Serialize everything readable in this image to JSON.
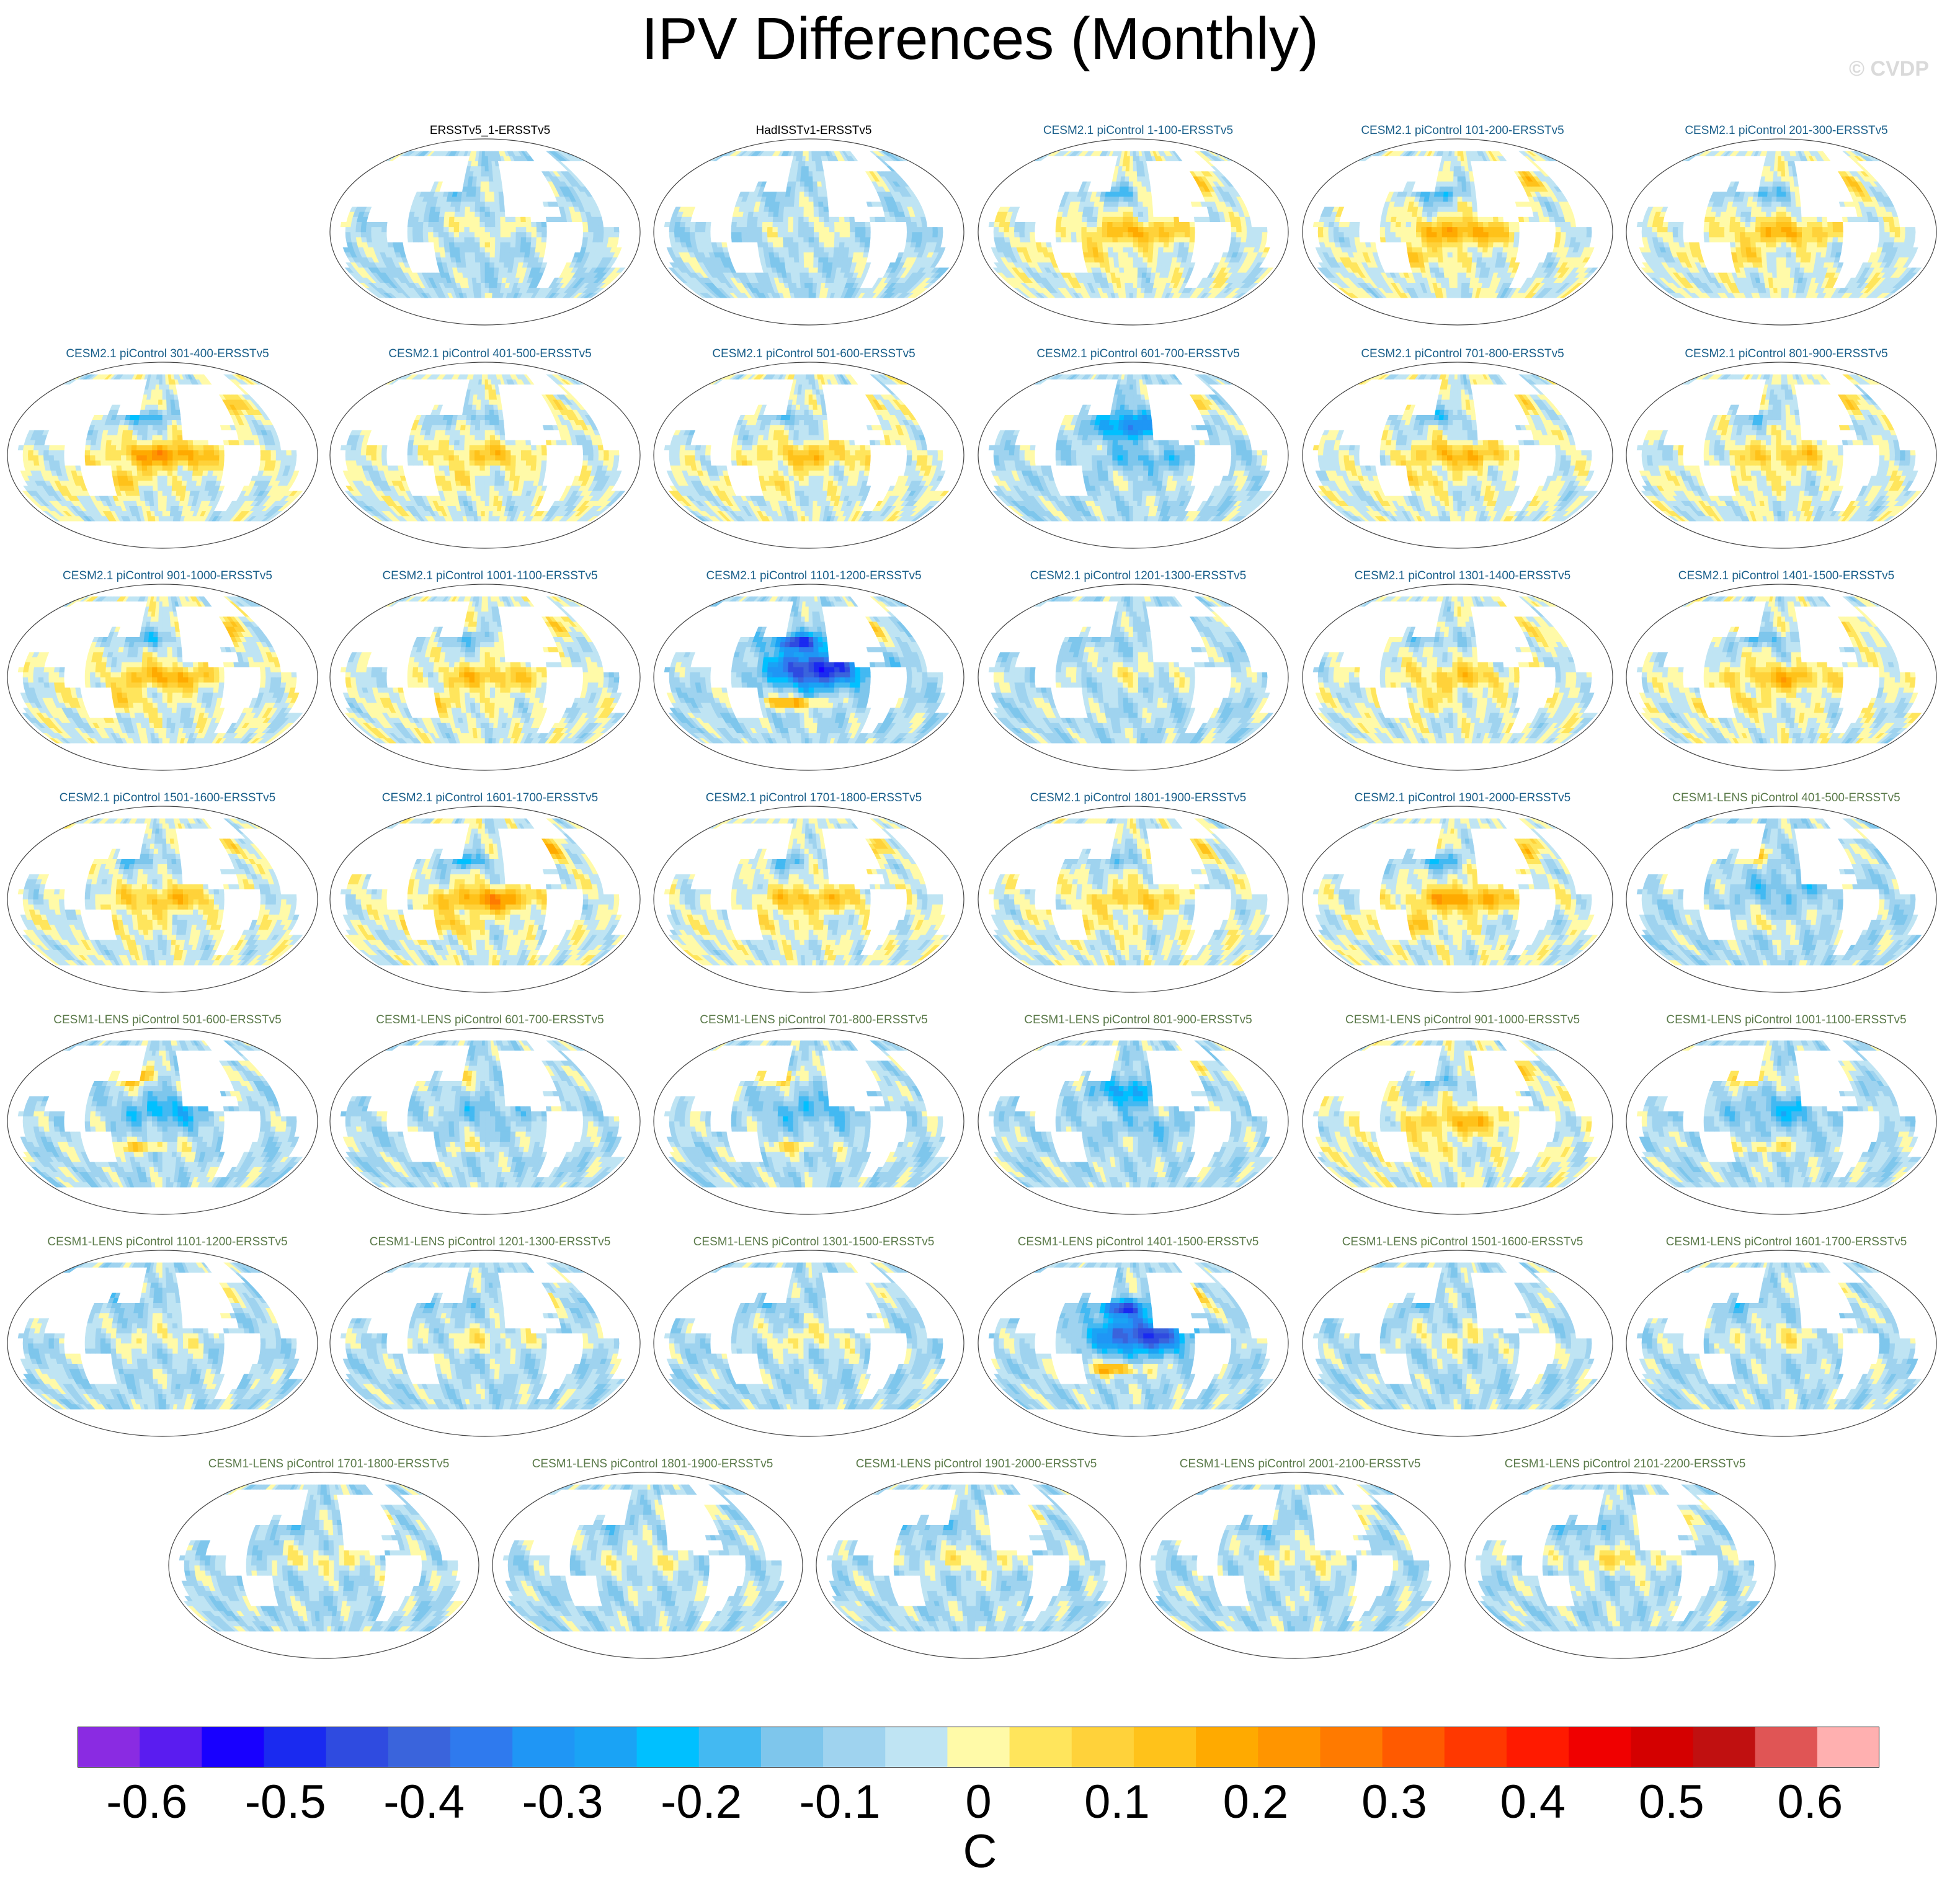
{
  "title": "IPV Differences (Monthly)",
  "watermark": "© CVDP",
  "chart_data": {
    "type": "heatmap",
    "title": "IPV Differences (Monthly)",
    "projection": "Robinson global map, Pacific-centered",
    "variable": "IPV sea surface temperature pattern difference",
    "units": "C",
    "colorbar": {
      "min": -0.65,
      "max": 0.65,
      "step": 0.05,
      "tick_values": [
        -0.6,
        -0.5,
        -0.4,
        -0.3,
        -0.2,
        -0.1,
        0,
        0.1,
        0.2,
        0.3,
        0.4,
        0.5,
        0.6
      ],
      "tick_labels": [
        "-0.6",
        "-0.5",
        "-0.4",
        "-0.3",
        "-0.2",
        "-0.1",
        "0",
        "0.1",
        "0.2",
        "0.3",
        "0.4",
        "0.5",
        "0.6"
      ],
      "unit_label": "C",
      "colors": [
        "#8a2be2",
        "#5a1cf0",
        "#1800ff",
        "#1a2af0",
        "#2f4be0",
        "#3a64dc",
        "#2f7aee",
        "#1f96f5",
        "#1aa3f5",
        "#00c0ff",
        "#43b9f2",
        "#7ec6ec",
        "#9fd3ef",
        "#bfe4f3",
        "#fffaa8",
        "#ffe55c",
        "#ffd23a",
        "#ffc21a",
        "#ffaa00",
        "#ff9500",
        "#ff7a00",
        "#ff5a00",
        "#ff3800",
        "#ff1a00",
        "#f00000",
        "#d40000",
        "#c01010",
        "#e05555",
        "#ffb0b0"
      ]
    },
    "panels": [
      {
        "label": "ERSSTv5_1-ERSSTv5",
        "group": "obs",
        "pattern": "weak",
        "amp": 0.12
      },
      {
        "label": "HadISSTv1-ERSSTv5",
        "group": "obs",
        "pattern": "weak",
        "amp": 0.08
      },
      {
        "label": "CESM2.1 piControl 1-100-ERSSTv5",
        "group": "cesm2",
        "pattern": "warm",
        "amp": 0.2
      },
      {
        "label": "CESM2.1 piControl 101-200-ERSSTv5",
        "group": "cesm2",
        "pattern": "warm",
        "amp": 0.25
      },
      {
        "label": "CESM2.1 piControl 201-300-ERSSTv5",
        "group": "cesm2",
        "pattern": "warm",
        "amp": 0.2
      },
      {
        "label": "CESM2.1 piControl 301-400-ERSSTv5",
        "group": "cesm2",
        "pattern": "warm",
        "amp": 0.28
      },
      {
        "label": "CESM2.1 piControl 401-500-ERSSTv5",
        "group": "cesm2",
        "pattern": "warm",
        "amp": 0.15
      },
      {
        "label": "CESM2.1 piControl 501-600-ERSSTv5",
        "group": "cesm2",
        "pattern": "warm",
        "amp": 0.17
      },
      {
        "label": "CESM2.1 piControl 601-700-ERSSTv5",
        "group": "cesm2",
        "pattern": "cold",
        "amp": 0.32
      },
      {
        "label": "CESM2.1 piControl 701-800-ERSSTv5",
        "group": "cesm2",
        "pattern": "warm",
        "amp": 0.2
      },
      {
        "label": "CESM2.1 piControl 801-900-ERSSTv5",
        "group": "cesm2",
        "pattern": "warm",
        "amp": 0.15
      },
      {
        "label": "CESM2.1 piControl 901-1000-ERSSTv5",
        "group": "cesm2",
        "pattern": "warm",
        "amp": 0.22
      },
      {
        "label": "CESM2.1 piControl 1001-1100-ERSSTv5",
        "group": "cesm2",
        "pattern": "warm",
        "amp": 0.18
      },
      {
        "label": "CESM2.1 piControl 1101-1200-ERSSTv5",
        "group": "cesm2",
        "pattern": "strongcold",
        "amp": 0.5
      },
      {
        "label": "CESM2.1 piControl 1201-1300-ERSSTv5",
        "group": "cesm2",
        "pattern": "weak",
        "amp": 0.12
      },
      {
        "label": "CESM2.1 piControl 1301-1400-ERSSTv5",
        "group": "cesm2",
        "pattern": "warm",
        "amp": 0.15
      },
      {
        "label": "CESM2.1 piControl 1401-1500-ERSSTv5",
        "group": "cesm2",
        "pattern": "warm",
        "amp": 0.2
      },
      {
        "label": "CESM2.1 piControl 1501-1600-ERSSTv5",
        "group": "cesm2",
        "pattern": "warm",
        "amp": 0.18
      },
      {
        "label": "CESM2.1 piControl 1601-1700-ERSSTv5",
        "group": "cesm2",
        "pattern": "warm",
        "amp": 0.27
      },
      {
        "label": "CESM2.1 piControl 1701-1800-ERSSTv5",
        "group": "cesm2",
        "pattern": "warm",
        "amp": 0.18
      },
      {
        "label": "CESM2.1 piControl 1801-1900-ERSSTv5",
        "group": "cesm2",
        "pattern": "warm",
        "amp": 0.14
      },
      {
        "label": "CESM2.1 piControl 1901-2000-ERSSTv5",
        "group": "cesm2",
        "pattern": "warm",
        "amp": 0.25
      },
      {
        "label": "CESM1-LENS piControl 401-500-ERSSTv5",
        "group": "lens",
        "pattern": "northwarm",
        "amp": 0.2
      },
      {
        "label": "CESM1-LENS piControl 501-600-ERSSTv5",
        "group": "lens",
        "pattern": "northwarm",
        "amp": 0.35
      },
      {
        "label": "CESM1-LENS piControl 601-700-ERSSTv5",
        "group": "lens",
        "pattern": "northwarm",
        "amp": 0.15
      },
      {
        "label": "CESM1-LENS piControl 701-800-ERSSTv5",
        "group": "lens",
        "pattern": "northwarm",
        "amp": 0.25
      },
      {
        "label": "CESM1-LENS piControl 801-900-ERSSTv5",
        "group": "lens",
        "pattern": "cold",
        "amp": 0.22
      },
      {
        "label": "CESM1-LENS piControl 901-1000-ERSSTv5",
        "group": "lens",
        "pattern": "warm",
        "amp": 0.18
      },
      {
        "label": "CESM1-LENS piControl 1001-1100-ERSSTv5",
        "group": "lens",
        "pattern": "northwarm",
        "amp": 0.28
      },
      {
        "label": "CESM1-LENS piControl 1101-1200-ERSSTv5",
        "group": "lens",
        "pattern": "weak",
        "amp": 0.12
      },
      {
        "label": "CESM1-LENS piControl 1201-1300-ERSSTv5",
        "group": "lens",
        "pattern": "weak",
        "amp": 0.15
      },
      {
        "label": "CESM1-LENS piControl 1301-1500-ERSSTv5",
        "group": "lens",
        "pattern": "weak",
        "amp": 0.15
      },
      {
        "label": "CESM1-LENS piControl 1401-1500-ERSSTv5",
        "group": "lens",
        "pattern": "strongcold",
        "amp": 0.45
      },
      {
        "label": "CESM1-LENS piControl 1501-1600-ERSSTv5",
        "group": "lens",
        "pattern": "weak",
        "amp": 0.14
      },
      {
        "label": "CESM1-LENS piControl 1601-1700-ERSSTv5",
        "group": "lens",
        "pattern": "weak",
        "amp": 0.15
      },
      {
        "label": "CESM1-LENS piControl 1701-1800-ERSSTv5",
        "group": "lens",
        "pattern": "weak",
        "amp": 0.15
      },
      {
        "label": "CESM1-LENS piControl 1801-1900-ERSSTv5",
        "group": "lens",
        "pattern": "weak",
        "amp": 0.12
      },
      {
        "label": "CESM1-LENS piControl 1901-2000-ERSSTv5",
        "group": "lens",
        "pattern": "weak",
        "amp": 0.15
      },
      {
        "label": "CESM1-LENS piControl 2001-2100-ERSSTv5",
        "group": "lens",
        "pattern": "weak",
        "amp": 0.15
      },
      {
        "label": "CESM1-LENS piControl 2101-2200-ERSSTv5",
        "group": "lens",
        "pattern": "weak",
        "amp": 0.2
      }
    ]
  }
}
